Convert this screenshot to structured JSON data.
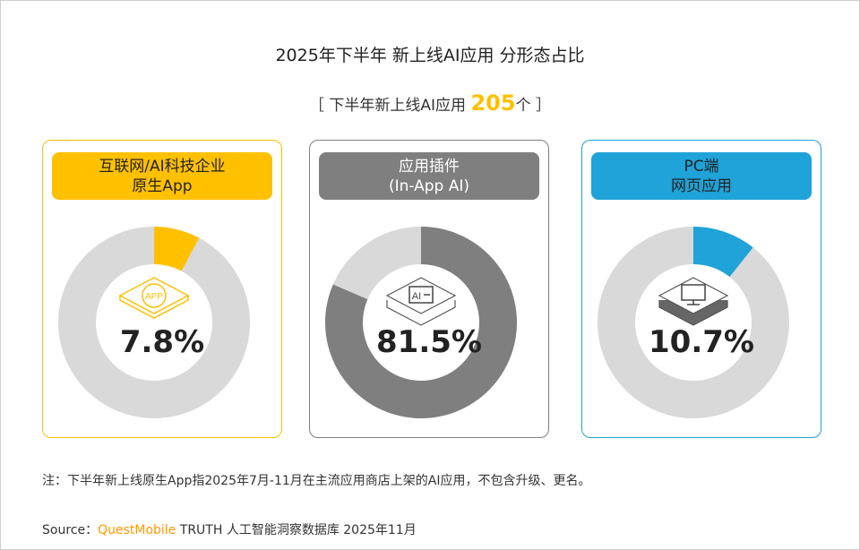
{
  "title": "2025年下半年 新上线AI应用 分形态占比",
  "subtitle": {
    "prefix": "［ 下半年新上线AI应用 ",
    "number": "205",
    "suffix": "个 ］"
  },
  "chart_data": {
    "type": "pie",
    "title": "2025年下半年 新上线AI应用 分形态占比",
    "remainder_color": "#D9D9D9",
    "series": [
      {
        "name_line1": "互联网/AI科技企业",
        "name_line2": "原生App",
        "value": 7.8,
        "label": "7.8%",
        "color": "#FFC000",
        "pill_text_color": "#222222",
        "border_color": "#FFC000",
        "icon": "app-icon"
      },
      {
        "name_line1": "应用插件",
        "name_line2": "(In-App AI)",
        "value": 81.5,
        "label": "81.5%",
        "color": "#7F7F7F",
        "pill_text_color": "#FFFFFF",
        "border_color": "#7F7F7F",
        "icon": "ai-plugin-icon"
      },
      {
        "name_line1": "PC端",
        "name_line2": "网页应用",
        "value": 10.7,
        "label": "10.7%",
        "color": "#1FA3D8",
        "pill_text_color": "#222222",
        "border_color": "#1FA3D8",
        "icon": "monitor-icon"
      }
    ]
  },
  "footer": {
    "note": "注：下半年新上线原生App指2025年7月-11月在主流应用商店上架的AI应用，不包含升级、更名。",
    "source_prefix": "Source：",
    "source_brand": "QuestMobile",
    "source_rest": " TRUTH 人工智能洞察数据库 2025年11月"
  }
}
